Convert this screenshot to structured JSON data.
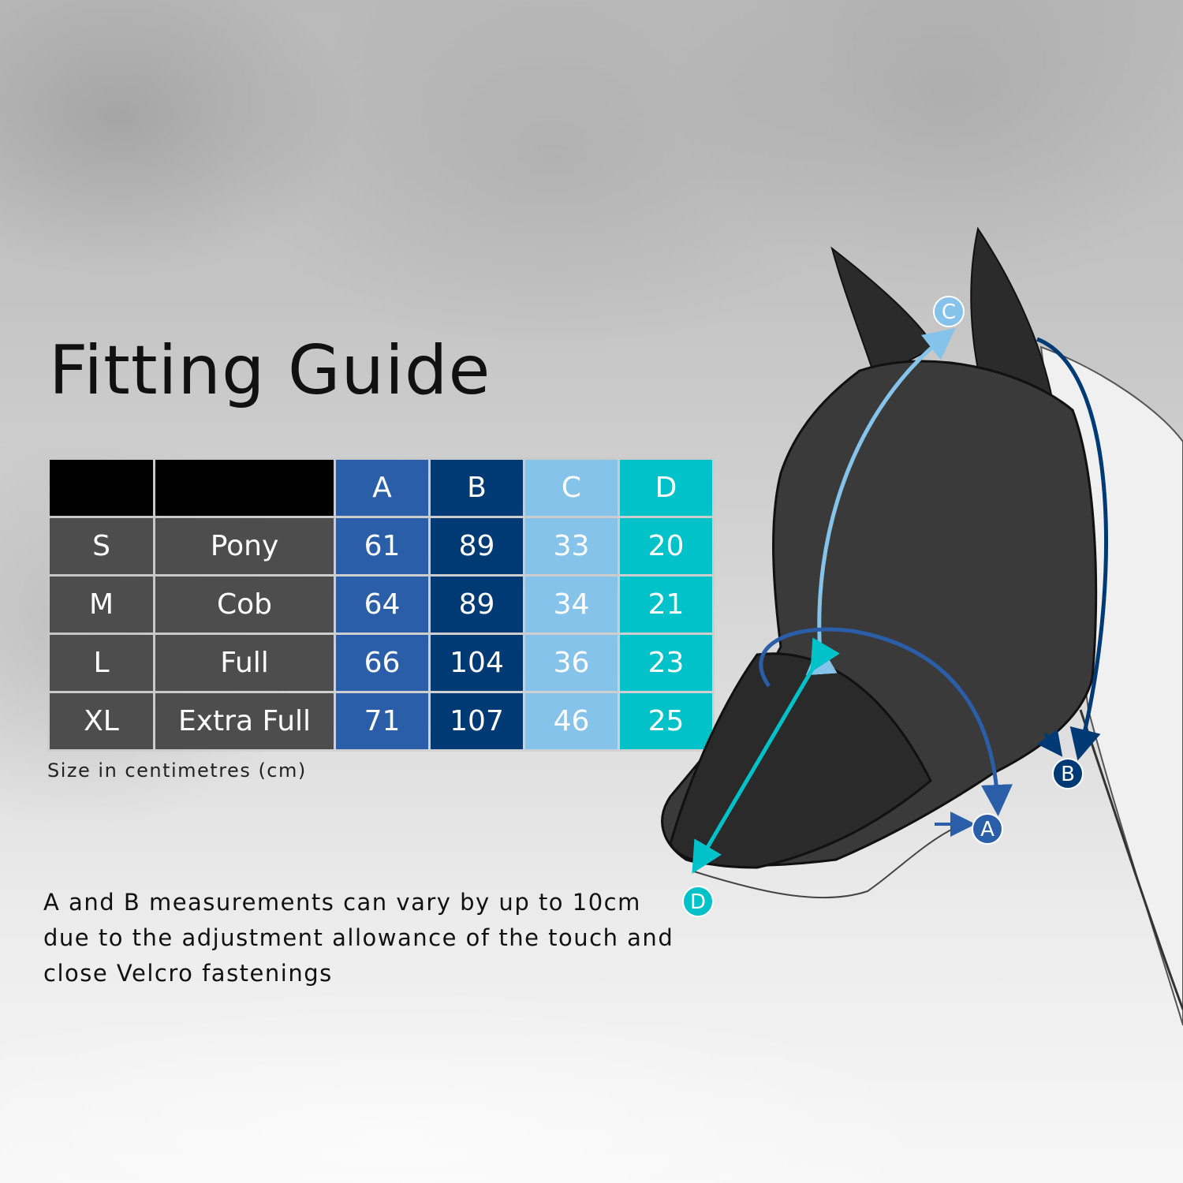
{
  "title": "Fitting Guide",
  "table": {
    "headers": [
      "",
      "",
      "A",
      "B",
      "C",
      "D"
    ],
    "rows": [
      {
        "size": "S",
        "name": "Pony",
        "A": "61",
        "B": "89",
        "C": "33",
        "D": "20"
      },
      {
        "size": "M",
        "name": "Cob",
        "A": "64",
        "B": "89",
        "C": "34",
        "D": "21"
      },
      {
        "size": "L",
        "name": "Full",
        "A": "66",
        "B": "104",
        "C": "36",
        "D": "23"
      },
      {
        "size": "XL",
        "name": "Extra Full",
        "A": "71",
        "B": "107",
        "C": "46",
        "D": "25"
      }
    ]
  },
  "unit_note": "Size in centimetres (cm)",
  "disclaimer": "A and B measurements can vary by up to 10cm due to the adjustment allowance of the touch and close Velcro fastenings",
  "diagram_labels": {
    "A": "A",
    "B": "B",
    "C": "C",
    "D": "D"
  },
  "colors": {
    "A": "#2b5ea8",
    "B": "#003a75",
    "C": "#85c3eb",
    "D": "#00c2c8",
    "header": "#000000",
    "row": "#4d4d4d"
  }
}
